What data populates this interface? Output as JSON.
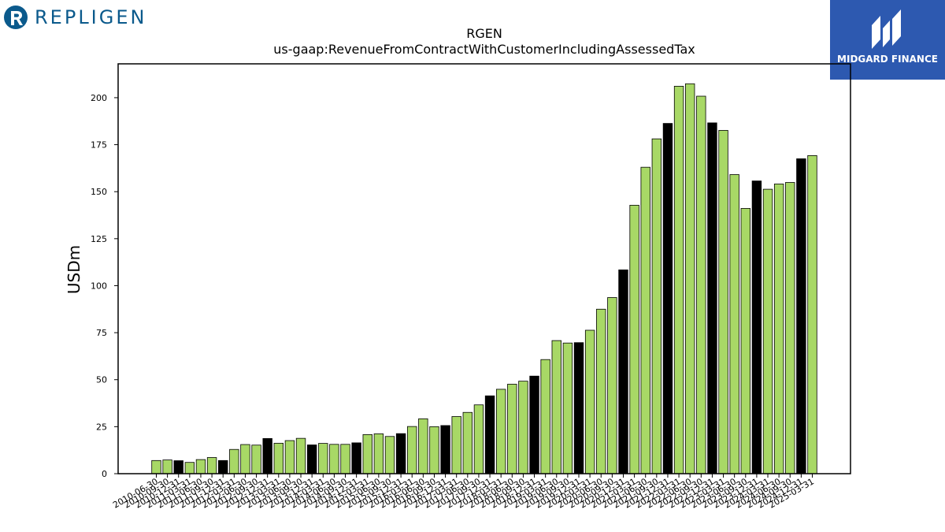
{
  "brand_left": {
    "name": "REPLIGEN",
    "icon": "repligen-r-logo-icon"
  },
  "brand_right": {
    "name": "MIDGARD FINANCE",
    "icon": "midgard-m-logo-icon"
  },
  "chart_data": {
    "type": "bar",
    "title": "RGEN",
    "subtitle": "us-gaap:RevenueFromContractWithCustomerIncludingAssessedTax",
    "xlabel": "",
    "ylabel": "USDm",
    "ylim": [
      0,
      218
    ],
    "yticks": [
      0,
      25,
      50,
      75,
      100,
      125,
      150,
      175,
      200
    ],
    "grid": false,
    "legend": "none",
    "colors": {
      "quarter": "#a8d866",
      "fiscal_year_end": "#000000",
      "edge": "#000000"
    },
    "categories": [
      "2010-06-30",
      "2010-09-30",
      "2010-12-31",
      "2011-03-31",
      "2011-06-30",
      "2011-09-30",
      "2011-12-31",
      "2012-03-31",
      "2012-06-30",
      "2012-09-30",
      "2012-12-31",
      "2013-03-31",
      "2013-06-30",
      "2013-09-30",
      "2013-12-31",
      "2014-03-31",
      "2014-06-30",
      "2014-09-30",
      "2014-12-31",
      "2015-03-31",
      "2015-06-30",
      "2015-09-30",
      "2015-12-31",
      "2016-03-31",
      "2016-06-30",
      "2016-09-30",
      "2016-12-31",
      "2017-03-31",
      "2017-06-30",
      "2017-09-30",
      "2017-12-31",
      "2018-03-31",
      "2018-06-30",
      "2018-09-30",
      "2018-12-31",
      "2019-03-31",
      "2019-06-30",
      "2019-09-30",
      "2019-12-31",
      "2020-03-31",
      "2020-06-30",
      "2020-09-30",
      "2020-12-31",
      "2021-03-31",
      "2021-06-30",
      "2021-09-30",
      "2021-12-31",
      "2022-03-31",
      "2022-06-30",
      "2022-09-30",
      "2022-12-31",
      "2023-03-31",
      "2023-06-30",
      "2023-09-30",
      "2023-12-31",
      "2024-03-31",
      "2024-06-30",
      "2024-09-30",
      "2024-12-31",
      "2025-03-31"
    ],
    "values": [
      7.0,
      7.3,
      6.9,
      6.0,
      7.5,
      8.6,
      7.0,
      12.9,
      15.5,
      15.2,
      18.7,
      16.2,
      17.6,
      18.8,
      15.3,
      16.1,
      15.6,
      15.6,
      16.4,
      20.8,
      21.2,
      19.8,
      21.3,
      25.1,
      29.2,
      25.0,
      25.6,
      30.4,
      32.6,
      36.6,
      41.4,
      44.9,
      47.6,
      49.2,
      51.9,
      60.7,
      70.8,
      69.5,
      69.7,
      76.3,
      87.5,
      93.7,
      108.4,
      142.8,
      163.0,
      178.1,
      186.3,
      206.1,
      207.4,
      200.8,
      186.6,
      182.6,
      159.1,
      141.1,
      155.7,
      151.3,
      154.1,
      154.9,
      167.5,
      169.2
    ],
    "fiscal_year_end": [
      false,
      false,
      true,
      false,
      false,
      false,
      true,
      false,
      false,
      false,
      true,
      false,
      false,
      false,
      true,
      false,
      false,
      false,
      true,
      false,
      false,
      false,
      true,
      false,
      false,
      false,
      true,
      false,
      false,
      false,
      true,
      false,
      false,
      false,
      true,
      false,
      false,
      false,
      true,
      false,
      false,
      false,
      true,
      false,
      false,
      false,
      true,
      false,
      false,
      false,
      true,
      false,
      false,
      false,
      true,
      false,
      false,
      false,
      true,
      false
    ]
  }
}
